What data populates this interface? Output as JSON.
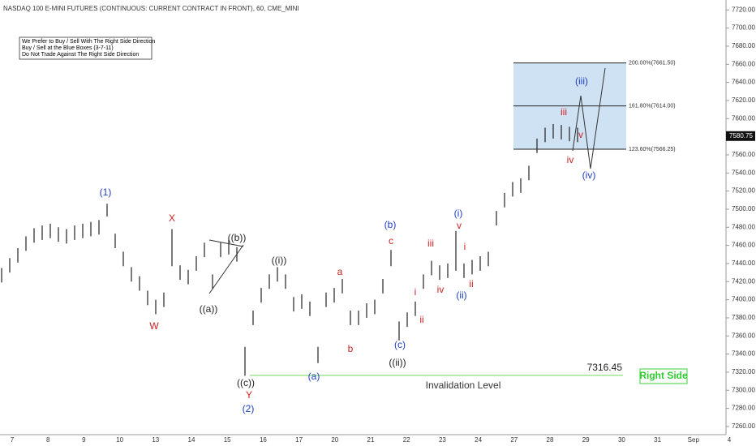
{
  "chart_data": {
    "type": "ohlc",
    "title": "NASDAQ 100 E-MINI FUTURES (CONTINUOUS: CURRENT CONTRACT IN FRONT), 60, CME_MINI",
    "notes": [
      "We Prefer to Buy / Sell With The Right Side Direction",
      "Buy / Sell at the Blue Boxes (3-7-11)",
      "Do Not Trade Against The Right Side Direction"
    ],
    "categories": [
      "7",
      "8",
      "9",
      "10",
      "13",
      "14",
      "15",
      "16",
      "17",
      "20",
      "21",
      "22",
      "23",
      "24",
      "27",
      "28",
      "29",
      "30",
      "31",
      "Sep",
      "4"
    ],
    "color": "#222222",
    "high": [
      7435,
      7446,
      7457,
      7470,
      7479,
      7482,
      7484,
      7480,
      7478,
      7482,
      7484,
      7486,
      7488,
      7506,
      7473,
      7453,
      7436,
      7426,
      7410,
      7400,
      7408,
      7478,
      7438,
      7433,
      7448,
      7463,
      7428,
      7463,
      7466,
      7458,
      7348,
      7388,
      7413,
      7428,
      7436,
      7428,
      7403,
      7406,
      7398,
      7348,
      7408,
      7413,
      7423,
      7388,
      7388,
      7396,
      7400,
      7423,
      7455,
      7376,
      7386,
      7398,
      7428,
      7443,
      7438,
      7440,
      7476,
      7440,
      7444,
      7448,
      7453,
      7498,
      7518,
      7530,
      7534,
      7548,
      7578,
      7590,
      7594,
      7593,
      7591,
      7590
    ],
    "low": [
      7419,
      7430,
      7441,
      7454,
      7463,
      7466,
      7468,
      7464,
      7462,
      7466,
      7468,
      7470,
      7472,
      7492,
      7457,
      7437,
      7420,
      7410,
      7394,
      7384,
      7392,
      7437,
      7422,
      7417,
      7432,
      7447,
      7412,
      7447,
      7450,
      7442,
      7316,
      7372,
      7397,
      7412,
      7420,
      7412,
      7387,
      7390,
      7382,
      7330,
      7392,
      7397,
      7407,
      7372,
      7372,
      7380,
      7384,
      7407,
      7437,
      7355,
      7370,
      7382,
      7412,
      7427,
      7422,
      7424,
      7432,
      7424,
      7428,
      7432,
      7437,
      7482,
      7502,
      7514,
      7518,
      7532,
      7562,
      7574,
      7578,
      7577,
      7575,
      7574
    ],
    "last_price": {
      "value": 7580.75,
      "label": "7580.75"
    },
    "levels": [
      {
        "label": "200.00%(7661.50)",
        "value": 7661.5
      },
      {
        "label": "161.80%(7614.00)",
        "value": 7614
      },
      {
        "label": "123.60%(7566.25)",
        "value": 7566.25
      }
    ],
    "box_color": "#cfe2f3",
    "invalidation": {
      "value": 7316.45,
      "label": "Invalidation Level",
      "color": "#7fdc6f"
    },
    "right_side": "Right Side",
    "annotations": [
      {
        "text": "(1)",
        "color": "#1f3fbf"
      },
      {
        "text": "X",
        "color": "#cc2222"
      },
      {
        "text": "W",
        "color": "#cc2222"
      },
      {
        "text": "((a))",
        "color": "#222"
      },
      {
        "text": "((b))",
        "color": "#222"
      },
      {
        "text": "((c))",
        "color": "#222"
      },
      {
        "text": "Y",
        "color": "#cc2222"
      },
      {
        "text": "(2)",
        "color": "#1f3fbf"
      },
      {
        "text": "((i))",
        "color": "#222"
      },
      {
        "text": "a",
        "color": "#cc2222"
      },
      {
        "text": "b",
        "color": "#cc2222"
      },
      {
        "text": "(a)",
        "color": "#1f3fbf"
      },
      {
        "text": "(b)",
        "color": "#1f3fbf"
      },
      {
        "text": "c",
        "color": "#cc2222"
      },
      {
        "text": "(c)",
        "color": "#1f3fbf"
      },
      {
        "text": "((ii))",
        "color": "#222"
      },
      {
        "text": "iii",
        "color": "#cc2222"
      },
      {
        "text": "i",
        "color": "#cc2222"
      },
      {
        "text": "ii",
        "color": "#cc2222"
      },
      {
        "text": "iv",
        "color": "#cc2222"
      },
      {
        "text": "v",
        "color": "#cc2222"
      },
      {
        "text": "(i)",
        "color": "#1f3fbf"
      },
      {
        "text": "(ii)",
        "color": "#1f3fbf"
      },
      {
        "text": "i",
        "color": "#cc2222"
      },
      {
        "text": "ii",
        "color": "#cc2222"
      },
      {
        "text": "iii",
        "color": "#cc2222"
      },
      {
        "text": "v",
        "color": "#cc2222"
      },
      {
        "text": "iv",
        "color": "#cc2222"
      },
      {
        "text": "(iii)",
        "color": "#1f3fbf"
      },
      {
        "text": "(iv)",
        "color": "#1f3fbf"
      }
    ],
    "ylim": [
      7251,
      7731
    ],
    "yticks": [
      {
        "value": 7260,
        "label": "7260.00"
      },
      {
        "value": 7280,
        "label": "7280.00"
      },
      {
        "value": 7300,
        "label": "7300.00"
      },
      {
        "value": 7320,
        "label": "7320.00"
      },
      {
        "value": 7340,
        "label": "7340.00"
      },
      {
        "value": 7360,
        "label": "7360.00"
      },
      {
        "value": 7380,
        "label": "7380.00"
      },
      {
        "value": 7400,
        "label": "7400.00"
      },
      {
        "value": 7420,
        "label": "7420.00"
      },
      {
        "value": 7440,
        "label": "7440.00"
      },
      {
        "value": 7460,
        "label": "7460.00"
      },
      {
        "value": 7480,
        "label": "7480.00"
      },
      {
        "value": 7500,
        "label": "7500.00"
      },
      {
        "value": 7520,
        "label": "7520.00"
      },
      {
        "value": 7540,
        "label": "7540.00"
      },
      {
        "value": 7560,
        "label": "7560.00"
      },
      {
        "value": 7600,
        "label": "7600.00"
      },
      {
        "value": 7620,
        "label": "7620.00"
      },
      {
        "value": 7640,
        "label": "7640.00"
      },
      {
        "value": 7660,
        "label": "7660.00"
      },
      {
        "value": 7680,
        "label": "7680.00"
      },
      {
        "value": 7700,
        "label": "7700.00"
      },
      {
        "value": 7720,
        "label": "7720.00"
      }
    ]
  }
}
